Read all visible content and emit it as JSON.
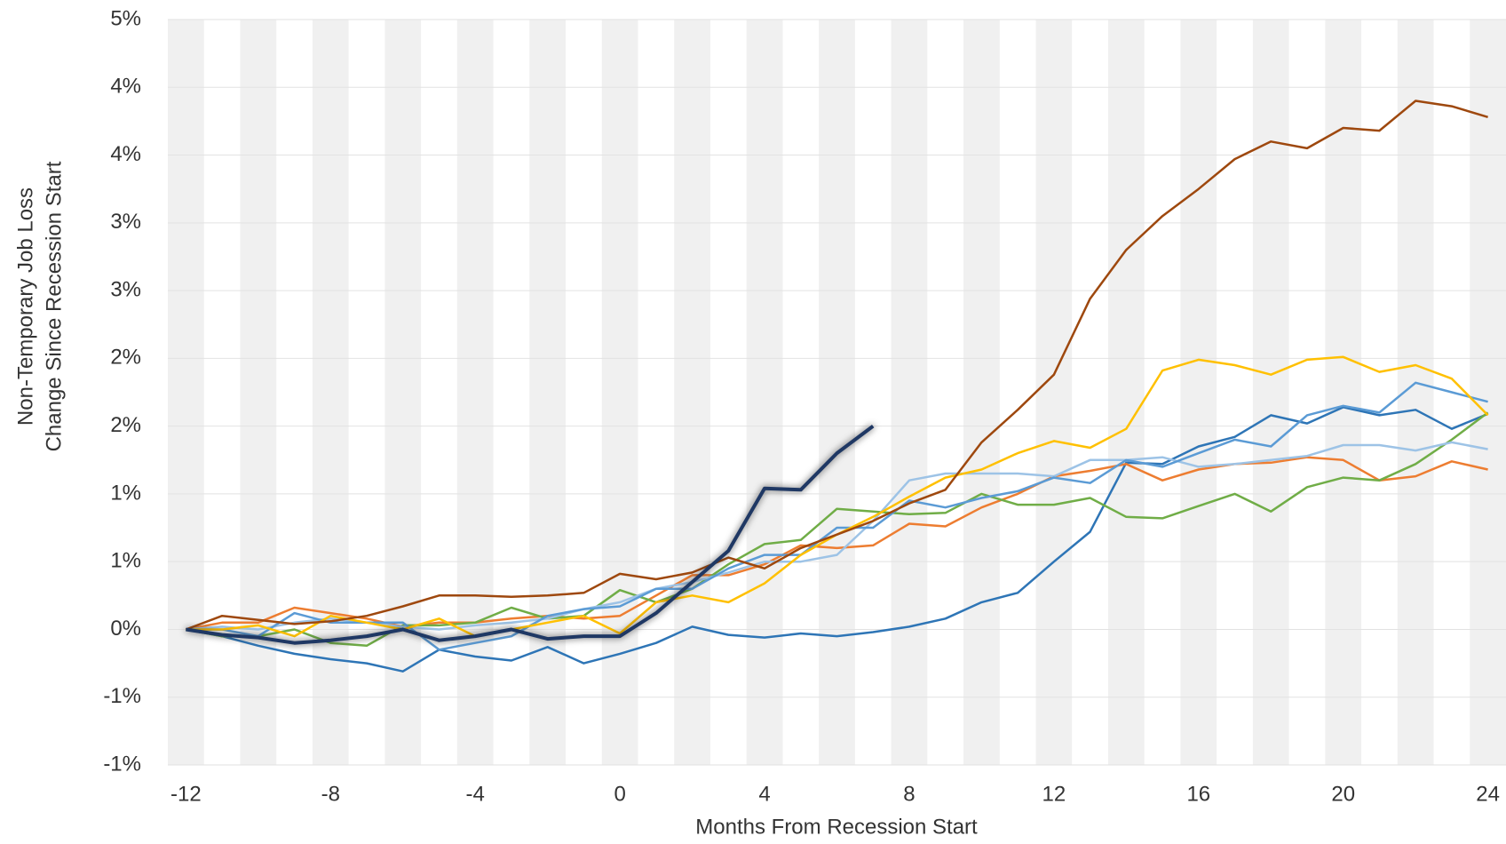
{
  "chart_data": {
    "type": "line",
    "xlabel": "Months From Recession Start",
    "ylabel": [
      "Non-Temporary Job Loss",
      "Change Since Recession Start"
    ],
    "x": [
      -12,
      -11,
      -10,
      -9,
      -8,
      -7,
      -6,
      -5,
      -4,
      -3,
      -2,
      -1,
      0,
      1,
      2,
      3,
      4,
      5,
      6,
      7,
      8,
      9,
      10,
      11,
      12,
      13,
      14,
      15,
      16,
      17,
      18,
      19,
      20,
      21,
      22,
      23,
      24
    ],
    "xlim": [
      -12.5,
      24.5
    ],
    "xticks": [
      -12,
      -8,
      -4,
      0,
      4,
      8,
      12,
      16,
      20,
      24
    ],
    "ylim": [
      -1,
      4.5
    ],
    "yticks": [
      {
        "value": -1,
        "label": "-1%"
      },
      {
        "value": -0.5,
        "label": "-1%"
      },
      {
        "value": 0,
        "label": "0%"
      },
      {
        "value": 0.5,
        "label": "1%"
      },
      {
        "value": 1,
        "label": "1%"
      },
      {
        "value": 1.5,
        "label": "2%"
      },
      {
        "value": 2,
        "label": "2%"
      },
      {
        "value": 2.5,
        "label": "3%"
      },
      {
        "value": 3,
        "label": "3%"
      },
      {
        "value": 3.5,
        "label": "4%"
      },
      {
        "value": 4,
        "label": "4%"
      },
      {
        "value": 4.5,
        "label": "5%"
      }
    ],
    "grid": true,
    "month_stripes": true,
    "series": [
      {
        "color": "#2e75b6",
        "values": [
          0,
          -0.05,
          -0.12,
          -0.18,
          -0.22,
          -0.25,
          -0.31,
          -0.15,
          -0.2,
          -0.23,
          -0.13,
          -0.25,
          -0.18,
          -0.1,
          0.02,
          -0.04,
          -0.06,
          -0.03,
          -0.05,
          -0.02,
          0.02,
          0.08,
          0.2,
          0.27,
          0.5,
          0.72,
          1.23,
          1.22,
          1.35,
          1.42,
          1.58,
          1.52,
          1.64,
          1.58,
          1.62,
          1.48,
          1.59
        ]
      },
      {
        "color": "#ed7d31",
        "values": [
          0,
          0.05,
          0.05,
          0.16,
          0.12,
          0.08,
          0.02,
          0.05,
          0.05,
          0.08,
          0.1,
          0.08,
          0.1,
          0.25,
          0.4,
          0.4,
          0.48,
          0.62,
          0.6,
          0.62,
          0.78,
          0.76,
          0.9,
          1.0,
          1.13,
          1.17,
          1.22,
          1.1,
          1.18,
          1.22,
          1.23,
          1.27,
          1.25,
          1.1,
          1.13,
          1.24,
          1.18
        ]
      },
      {
        "color": "#70ad47",
        "values": [
          0,
          -0.05,
          -0.05,
          0,
          -0.1,
          -0.12,
          0.03,
          0.03,
          0.05,
          0.16,
          0.08,
          0.1,
          0.29,
          0.2,
          0.3,
          0.48,
          0.63,
          0.66,
          0.89,
          0.87,
          0.85,
          0.86,
          1.0,
          0.92,
          0.92,
          0.97,
          0.83,
          0.82,
          0.91,
          1.0,
          0.87,
          1.05,
          1.12,
          1.1,
          1.22,
          1.4,
          1.6
        ]
      },
      {
        "color": "#9dc3e6",
        "values": [
          0,
          0.02,
          0.0,
          0.05,
          0.08,
          0.05,
          0.02,
          0.0,
          0.03,
          0.05,
          0.08,
          0.15,
          0.2,
          0.3,
          0.35,
          0.42,
          0.5,
          0.5,
          0.55,
          0.8,
          1.1,
          1.15,
          1.15,
          1.15,
          1.13,
          1.25,
          1.25,
          1.27,
          1.2,
          1.22,
          1.25,
          1.28,
          1.36,
          1.36,
          1.32,
          1.38,
          1.33
        ]
      },
      {
        "color": "#5b9bd5",
        "values": [
          0,
          0,
          -0.05,
          0.12,
          0.05,
          0.05,
          0.05,
          -0.15,
          -0.1,
          -0.05,
          0.1,
          0.15,
          0.17,
          0.3,
          0.3,
          0.45,
          0.55,
          0.55,
          0.75,
          0.75,
          0.95,
          0.9,
          0.97,
          1.02,
          1.12,
          1.08,
          1.25,
          1.2,
          1.3,
          1.4,
          1.35,
          1.58,
          1.65,
          1.6,
          1.82,
          1.75,
          1.68
        ]
      },
      {
        "color": "#ffc000",
        "values": [
          0,
          0,
          0.03,
          -0.05,
          0.1,
          0.05,
          0,
          0.08,
          -0.05,
          0,
          0.05,
          0.1,
          -0.03,
          0.2,
          0.25,
          0.2,
          0.34,
          0.55,
          0.7,
          0.83,
          0.98,
          1.12,
          1.18,
          1.3,
          1.39,
          1.34,
          1.48,
          1.91,
          1.99,
          1.95,
          1.88,
          1.99,
          2.01,
          1.9,
          1.95,
          1.85,
          1.58
        ]
      },
      {
        "color": "#9e480e",
        "values": [
          0,
          0.1,
          0.07,
          0.04,
          0.06,
          0.1,
          0.17,
          0.25,
          0.25,
          0.24,
          0.25,
          0.27,
          0.41,
          0.37,
          0.42,
          0.53,
          0.45,
          0.6,
          0.7,
          0.8,
          0.93,
          1.03,
          1.38,
          1.62,
          1.88,
          2.44,
          2.8,
          3.05,
          3.25,
          3.47,
          3.6,
          3.55,
          3.7,
          3.68,
          3.9,
          3.86,
          3.78
        ]
      },
      {
        "color": "#1f3864",
        "highlight": true,
        "values": [
          0,
          -0.04,
          -0.06,
          -0.1,
          -0.08,
          -0.05,
          0,
          -0.08,
          -0.05,
          0,
          -0.07,
          -0.05,
          -0.05,
          0.12,
          0.35,
          0.58,
          1.04,
          1.03,
          1.3,
          1.5,
          null,
          null,
          null,
          null,
          null,
          null,
          null,
          null,
          null,
          null,
          null,
          null,
          null,
          null,
          null,
          null,
          null
        ]
      }
    ]
  }
}
